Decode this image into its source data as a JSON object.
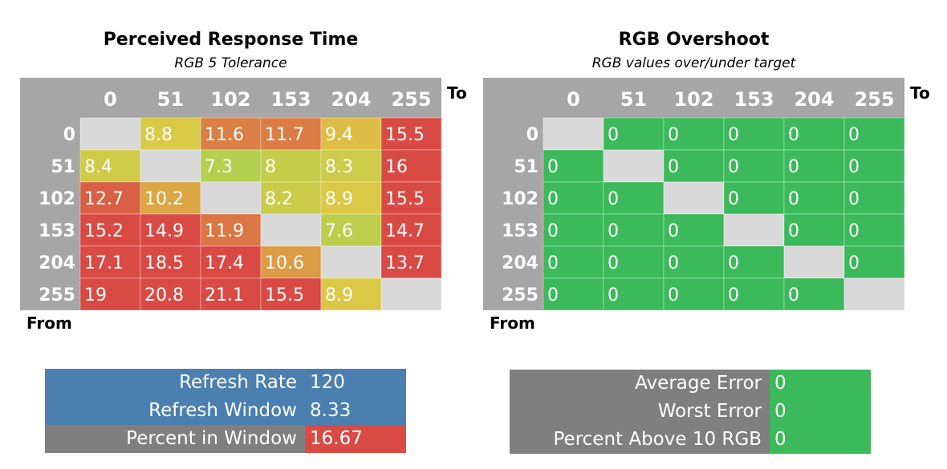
{
  "chart_data": [
    {
      "type": "heatmap",
      "title": "Perceived Response Time",
      "subtitle": "RGB 5 Tolerance",
      "column_axis_label": "To",
      "row_axis_label": "From",
      "columns": [
        "0",
        "51",
        "102",
        "153",
        "204",
        "255"
      ],
      "rows": [
        "0",
        "51",
        "102",
        "153",
        "204",
        "255"
      ],
      "values": [
        [
          null,
          8.8,
          11.6,
          11.7,
          9.4,
          15.5
        ],
        [
          8.4,
          null,
          7.3,
          8,
          8.3,
          16
        ],
        [
          12.7,
          10.2,
          null,
          8.2,
          8.9,
          15.5
        ],
        [
          15.2,
          14.9,
          11.9,
          null,
          7.6,
          14.7
        ],
        [
          17.1,
          18.5,
          17.4,
          10.6,
          null,
          13.7
        ],
        [
          19,
          20.8,
          21.1,
          15.5,
          8.9,
          null
        ]
      ],
      "color_scale": {
        "low": "#b5cf4e",
        "mid": "#ddc845",
        "high": "#d94a45"
      }
    },
    {
      "type": "heatmap",
      "title": "RGB Overshoot",
      "subtitle": "RGB values over/under target",
      "column_axis_label": "To",
      "row_axis_label": "From",
      "columns": [
        "0",
        "51",
        "102",
        "153",
        "204",
        "255"
      ],
      "rows": [
        "0",
        "51",
        "102",
        "153",
        "204",
        "255"
      ],
      "values": [
        [
          null,
          0,
          0,
          0,
          0,
          0
        ],
        [
          0,
          null,
          0,
          0,
          0,
          0
        ],
        [
          0,
          0,
          null,
          0,
          0,
          0
        ],
        [
          0,
          0,
          0,
          null,
          0,
          0
        ],
        [
          0,
          0,
          0,
          0,
          null,
          0
        ],
        [
          0,
          0,
          0,
          0,
          0,
          null
        ]
      ],
      "color_scale": {
        "zero": "#3cb95a"
      }
    }
  ],
  "summary_left": [
    {
      "label": "Refresh Rate",
      "value": "120",
      "label_color": "#4a7fb0",
      "value_color": "#4a7fb0"
    },
    {
      "label": "Refresh Window",
      "value": "8.33",
      "label_color": "#4a7fb0",
      "value_color": "#4a7fb0"
    },
    {
      "label": "Percent in Window",
      "value": "16.67",
      "label_color": "#7f7f7f",
      "value_color": "#d94a45"
    }
  ],
  "summary_right": [
    {
      "label": "Average Error",
      "value": "0",
      "label_color": "#7f7f7f",
      "value_color": "#3cb95a"
    },
    {
      "label": "Worst Error",
      "value": "0",
      "label_color": "#7f7f7f",
      "value_color": "#3cb95a"
    },
    {
      "label": "Percent Above 10 RGB",
      "value": "0",
      "label_color": "#7f7f7f",
      "value_color": "#3cb95a"
    }
  ],
  "colors": {
    "header": "#a6a6a6",
    "diagonal": "#d9d9d9"
  }
}
